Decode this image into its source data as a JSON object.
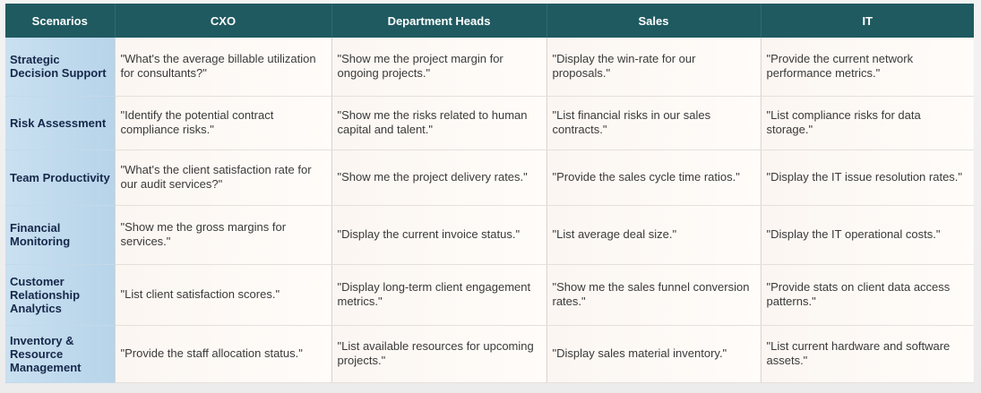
{
  "table": {
    "headers": [
      "Scenarios",
      "CXO",
      "Department Heads",
      "Sales",
      "IT"
    ],
    "rows": [
      {
        "scenario": "Strategic Decision Support",
        "cells": [
          "\"What's the average billable utilization for consultants?\"",
          "\"Show me the project margin for ongoing projects.\"",
          "\"Display the win-rate for our proposals.\"",
          "\"Provide the current network performance metrics.\""
        ]
      },
      {
        "scenario": "Risk Assessment",
        "cells": [
          "\"Identify the potential contract compliance risks.\"",
          "\"Show me the risks related to human capital and talent.\"",
          "\"List financial risks in our sales contracts.\"",
          "\"List compliance risks for data storage.\""
        ]
      },
      {
        "scenario": "Team Productivity",
        "cells": [
          "\"What's the client satisfaction rate for our audit services?\"",
          "\"Show me the project delivery rates.\"",
          "\"Provide the sales cycle time ratios.\"",
          "\"Display the IT issue resolution rates.\""
        ]
      },
      {
        "scenario": "Financial Monitoring",
        "cells": [
          "\"Show me the gross margins for services.\"",
          "\"Display the current invoice status.\"",
          "\"List average deal size.\"",
          "\"Display the IT operational costs.\""
        ]
      },
      {
        "scenario": "Customer Relationship Analytics",
        "cells": [
          "\"List client satisfaction scores.\"",
          "\"Display long-term client engagement metrics.\"",
          "\"Show me the sales funnel conversion rates.\"",
          "\"Provide stats on client data access patterns.\""
        ]
      },
      {
        "scenario": "Inventory & Resource Management",
        "cells": [
          "\"Provide the staff allocation status.\"",
          "\"List available resources for upcoming projects.\"",
          "\"Display sales material inventory.\"",
          "\"List current hardware and software assets.\""
        ]
      }
    ]
  },
  "colors": {
    "header_bg": "#1f5a60",
    "header_text": "#ffffff",
    "scenario_bg": "#c9e0f0",
    "scenario_text": "#16284a",
    "cell_bg": "#fdf8f3",
    "cell_text": "#3a3a3a"
  }
}
